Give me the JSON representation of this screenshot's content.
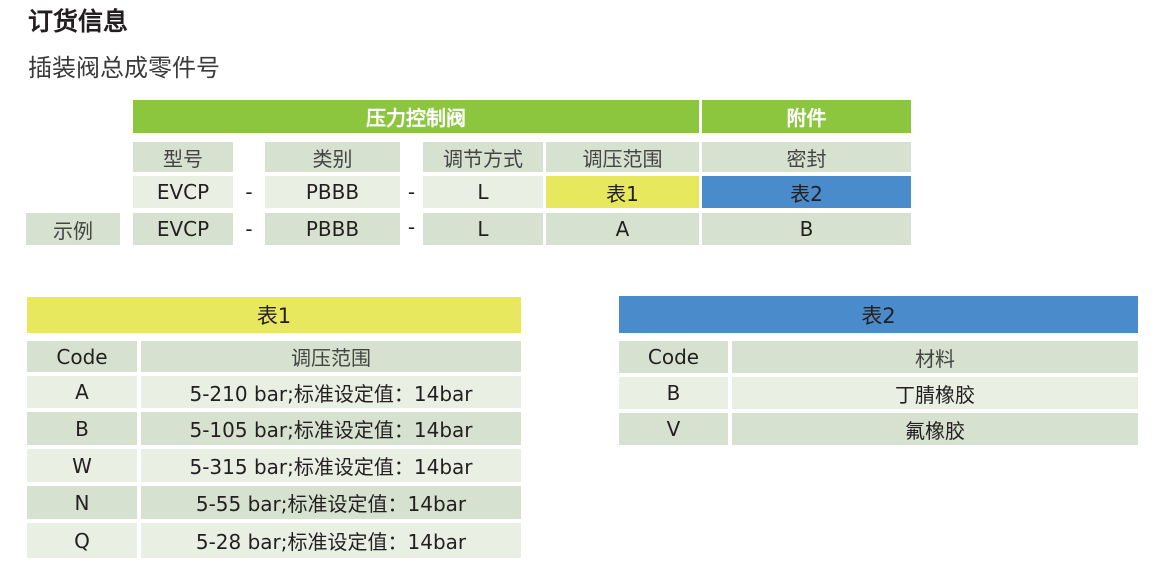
{
  "title": "订货信息",
  "subtitle": "插装阀总成零件号",
  "colors": {
    "green": "#8cc63f",
    "yellow": "#e8e85e",
    "blue": "#4a8bcb",
    "row_light": "#e9efe3",
    "row_dark": "#d6e2cf"
  },
  "order_code": {
    "group_main": "压力控制阀",
    "group_accessory": "附件",
    "headers": [
      "型号",
      "类别",
      "调节方式",
      "调压范围",
      "密封"
    ],
    "separator": "-",
    "code_row": [
      "EVCP",
      "PBBB",
      "L",
      "表1",
      "表2"
    ],
    "example_label": "示例",
    "example_row": [
      "EVCP",
      "PBBB",
      "L",
      "A",
      "B"
    ]
  },
  "table1": {
    "title": "表1",
    "headers": [
      "Code",
      "调压范围"
    ],
    "rows": [
      [
        "A",
        "5-210 bar;标准设定值：14bar"
      ],
      [
        "B",
        "5-105 bar;标准设定值：14bar"
      ],
      [
        "W",
        "5-315 bar;标准设定值：14bar"
      ],
      [
        "N",
        "5-55 bar;标准设定值：14bar"
      ],
      [
        "Q",
        "5-28 bar;标准设定值：14bar"
      ]
    ]
  },
  "table2": {
    "title": "表2",
    "headers": [
      "Code",
      "材料"
    ],
    "rows": [
      [
        "B",
        "丁腈橡胶"
      ],
      [
        "V",
        "氟橡胶"
      ]
    ]
  }
}
